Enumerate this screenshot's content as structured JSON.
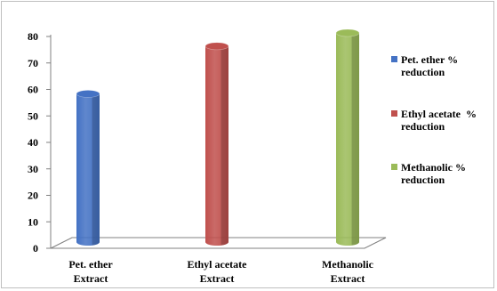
{
  "chart_data": {
    "type": "bar",
    "style": "3d-cylinder",
    "categories": [
      [
        "Pet. ether",
        "Extract"
      ],
      [
        "Ethyl acetate",
        "Extract"
      ],
      [
        "Methanolic",
        "Extract"
      ]
    ],
    "values": [
      57,
      75,
      80
    ],
    "colors": [
      "#4472C4",
      "#C0504D",
      "#9BBB59"
    ],
    "series_legend": [
      {
        "label": [
          "Pet. ether %",
          "reduction"
        ],
        "color": "#4472C4"
      },
      {
        "label": [
          "Ethyl acetate  %",
          "reduction"
        ],
        "color": "#C0504D"
      },
      {
        "label": [
          "Methanolic %",
          "reduction"
        ],
        "color": "#9BBB59"
      }
    ],
    "yticks": [
      0,
      10,
      20,
      30,
      40,
      50,
      60,
      70,
      80
    ],
    "ylim": [
      0,
      80
    ],
    "title": "",
    "xlabel": "",
    "ylabel": "",
    "grid": false,
    "legend_position": "right"
  }
}
